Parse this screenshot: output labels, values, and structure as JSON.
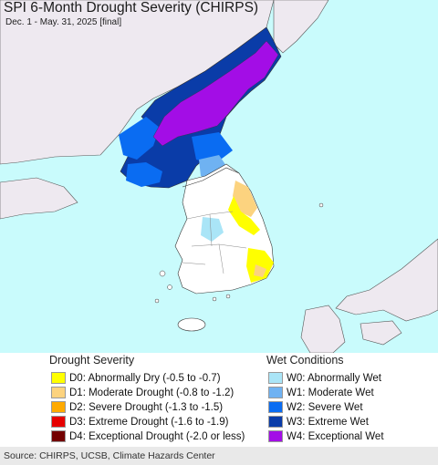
{
  "header": {
    "title": "SPI 6-Month Drought Severity (CHIRPS)",
    "subtitle": "Dec. 1 - May. 31, 2025 [final]"
  },
  "map": {
    "water_color": "#c9fbfc",
    "land_color": "#eee9f0",
    "no_change_color": "#ffffff"
  },
  "legend": {
    "drought": {
      "heading": "Drought Severity",
      "items": [
        {
          "label": "D0: Abnormally Dry (-0.5 to -0.7)",
          "color": "#ffff00"
        },
        {
          "label": "D1: Moderate Drought (-0.8 to -1.2)",
          "color": "#fcd37f"
        },
        {
          "label": "D2: Severe Drought (-1.3 to -1.5)",
          "color": "#ffaa00"
        },
        {
          "label": "D3: Extreme Drought (-1.6 to -1.9)",
          "color": "#e60000"
        },
        {
          "label": "D4: Exceptional Drought (-2.0 or less)",
          "color": "#730000"
        }
      ]
    },
    "wet": {
      "heading": "Wet Conditions",
      "items": [
        {
          "label": "W0: Abnormally Wet",
          "color": "#aae5f7"
        },
        {
          "label": "W1: Moderate Wet",
          "color": "#6fb2f2"
        },
        {
          "label": "W2: Severe Wet",
          "color": "#0a6cf2"
        },
        {
          "label": "W3: Extreme Wet",
          "color": "#0a3ca8"
        },
        {
          "label": "W4: Exceptional Wet",
          "color": "#a30de6"
        }
      ]
    }
  },
  "footer": {
    "source": "Source: CHIRPS, UCSB, Climate Hazards Center"
  }
}
